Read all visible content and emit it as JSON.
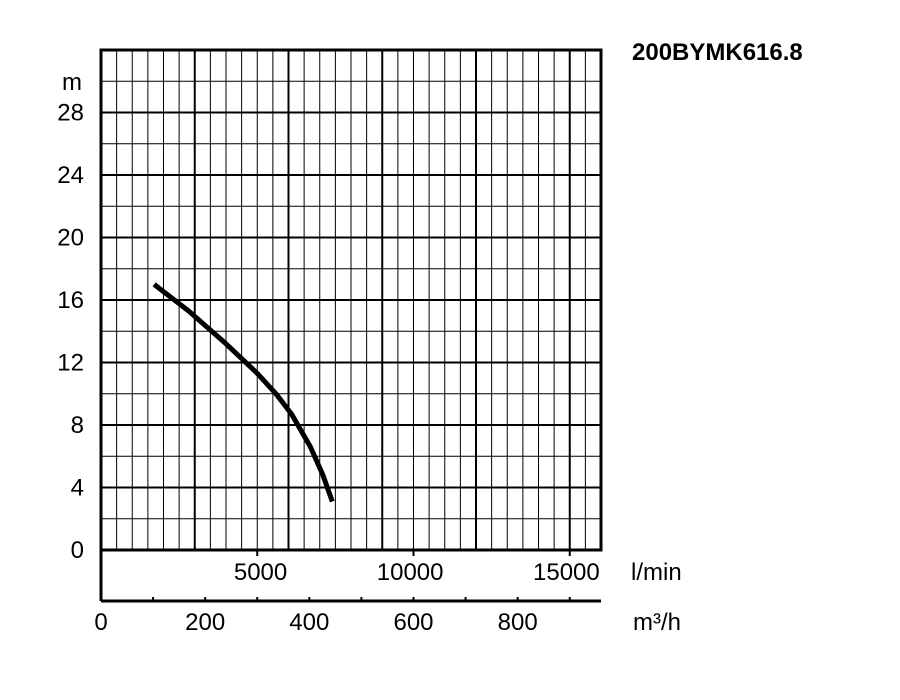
{
  "chart_data": {
    "type": "line",
    "title": "200BYMK616.8",
    "ylabel": "m",
    "x_primary_unit": "l/min",
    "x_secondary_unit": "m³/h",
    "ylim": [
      0,
      32
    ],
    "xlim_lmin": [
      0,
      16000
    ],
    "xlim_m3h": [
      0,
      960
    ],
    "grid": true,
    "y_ticks": [
      "0",
      "4",
      "8",
      "12",
      "16",
      "20",
      "24",
      "28"
    ],
    "x_ticks_lmin": [
      "5000",
      "10000",
      "15000"
    ],
    "x_ticks_m3h": [
      "0",
      "200",
      "400",
      "600",
      "800"
    ],
    "series": [
      {
        "x": [
          1700,
          2800,
          4000,
          5000,
          5600,
          6100,
          6700,
          7100,
          7400
        ],
        "y": [
          17,
          15.3,
          13.2,
          11.3,
          10,
          8.7,
          6.6,
          4.8,
          3.1
        ]
      }
    ]
  }
}
